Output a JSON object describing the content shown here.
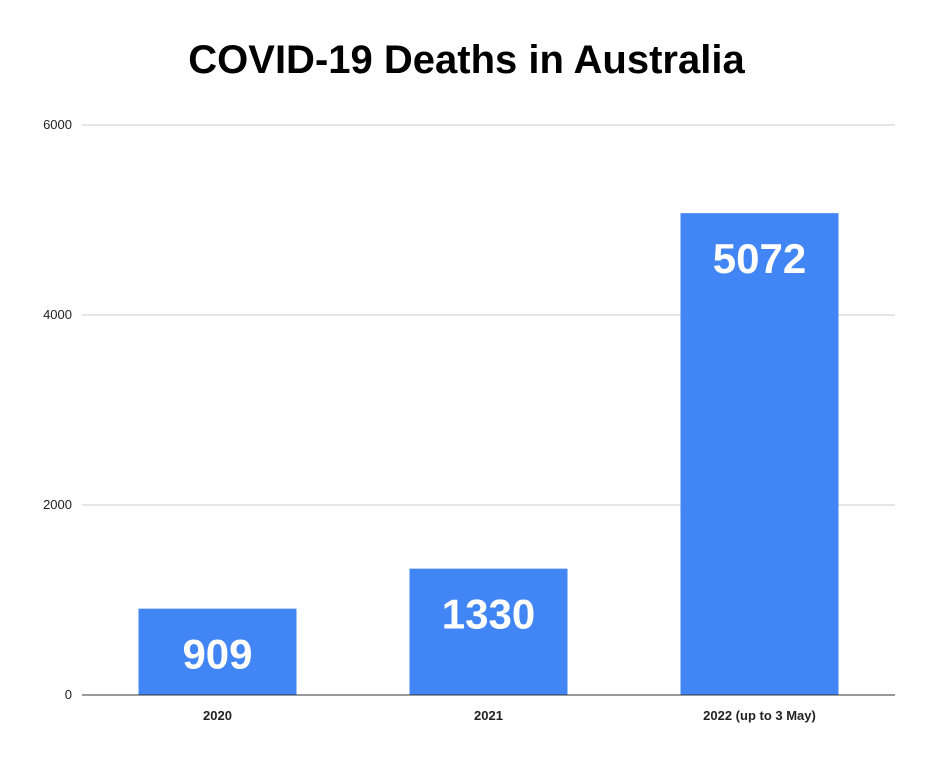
{
  "chart_data": {
    "type": "bar",
    "title": "COVID-19 Deaths in Australia",
    "xlabel": "",
    "ylabel": "",
    "categories": [
      "2020",
      "2021",
      "2022 (up to 3 May)"
    ],
    "values": [
      909,
      1330,
      5072
    ],
    "data_labels": [
      "909",
      "1330",
      "5072"
    ],
    "ylim": [
      0,
      6000
    ],
    "yticks": [
      0,
      2000,
      4000,
      6000
    ],
    "ytick_labels": [
      "0",
      "2000",
      "4000",
      "6000"
    ],
    "grid": true,
    "legend": "none",
    "colors": {
      "bar": "#4285f4",
      "grid": "#cccccc",
      "axis": "#333333",
      "data_label": "#ffffff"
    }
  }
}
